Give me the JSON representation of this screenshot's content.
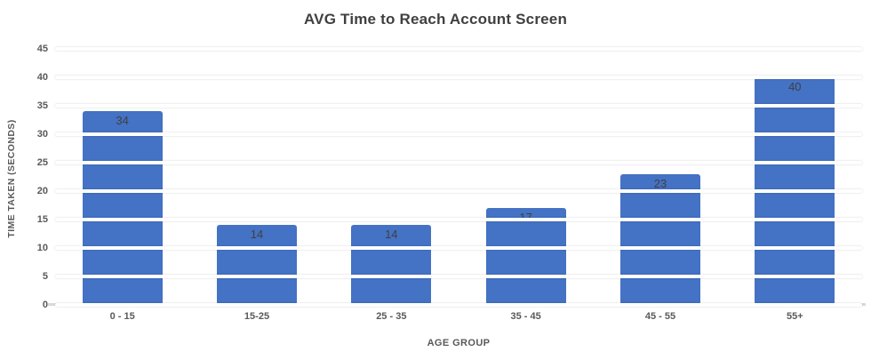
{
  "chart_data": {
    "type": "bar",
    "title": "AVG Time to Reach Account Screen",
    "xlabel": "AGE GROUP",
    "ylabel": "TIME TAKEN (SECONDS)",
    "categories": [
      "0 - 15",
      "15-25",
      "25 - 35",
      "35 - 45",
      "45 - 55",
      "55+"
    ],
    "values": [
      34,
      14,
      14,
      17,
      23,
      40
    ],
    "data_labels": [
      "34",
      "14",
      "14",
      "17",
      "23",
      "40"
    ],
    "ylim": [
      0,
      45
    ],
    "yticks": [
      0,
      5,
      10,
      15,
      20,
      25,
      30,
      35,
      40,
      45
    ],
    "legend": "none",
    "grid": "horizontal gridlines drawn in white over the bars",
    "colors": {
      "bar": "#4472C4",
      "data_label": "#404040",
      "title": "#404040",
      "axis_text": "#595959",
      "gridline": "#FFFFFF",
      "axis_line": "#D9D9D9",
      "background": "#FFFFFF"
    }
  }
}
